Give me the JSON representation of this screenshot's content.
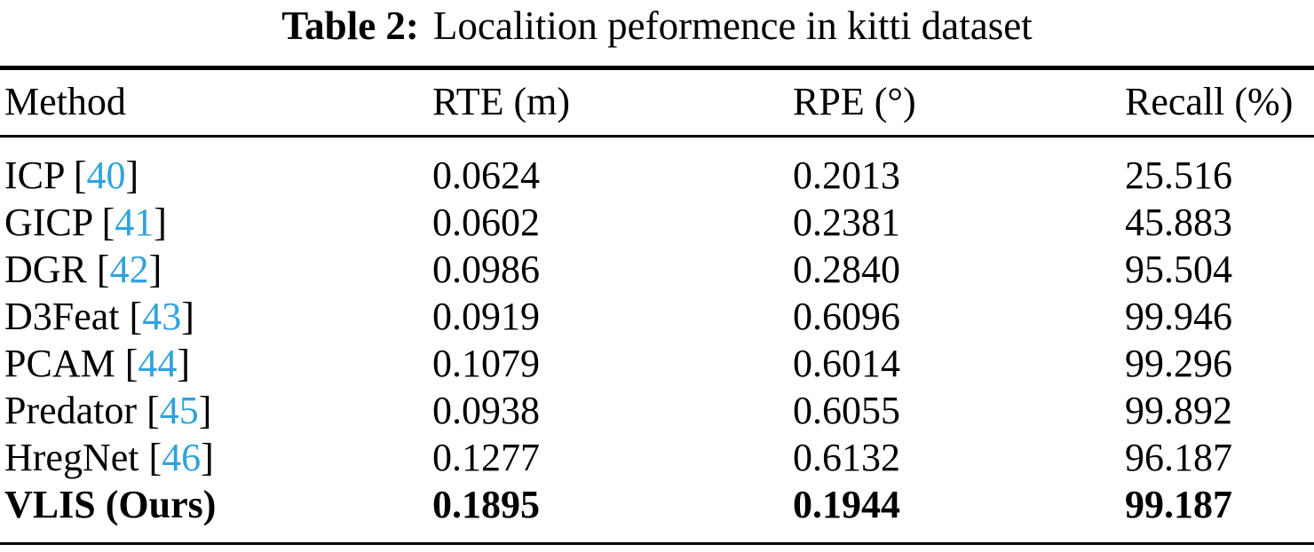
{
  "caption": {
    "label": "Table 2:",
    "text": "Localition peformence in kitti dataset"
  },
  "table": {
    "columns": [
      "Method",
      "RTE (m)",
      "RPE (°)",
      "Recall (%)"
    ],
    "rows": [
      {
        "method": "ICP",
        "cite": "40",
        "rte": "0.0624",
        "rpe": "0.2013",
        "recall": "25.516",
        "bold": false
      },
      {
        "method": "GICP",
        "cite": "41",
        "rte": "0.0602",
        "rpe": "0.2381",
        "recall": "45.883",
        "bold": false
      },
      {
        "method": "DGR",
        "cite": "42",
        "rte": "0.0986",
        "rpe": "0.2840",
        "recall": "95.504",
        "bold": false
      },
      {
        "method": "D3Feat",
        "cite": "43",
        "rte": "0.0919",
        "rpe": "0.6096",
        "recall": "99.946",
        "bold": false
      },
      {
        "method": "PCAM",
        "cite": "44",
        "rte": "0.1079",
        "rpe": "0.6014",
        "recall": "99.296",
        "bold": false
      },
      {
        "method": "Predator",
        "cite": "45",
        "rte": "0.0938",
        "rpe": "0.6055",
        "recall": "99.892",
        "bold": false
      },
      {
        "method": "HregNet",
        "cite": "46",
        "rte": "0.1277",
        "rpe": "0.6132",
        "recall": "96.187",
        "bold": false
      },
      {
        "method": "VLIS (Ours)",
        "cite": null,
        "rte": "0.1895",
        "rpe": "0.1944",
        "recall": "99.187",
        "bold": true
      }
    ]
  },
  "colors": {
    "citation": "#2fa3dc",
    "text": "#000000",
    "rule": "#000000",
    "background": "#ffffff"
  }
}
